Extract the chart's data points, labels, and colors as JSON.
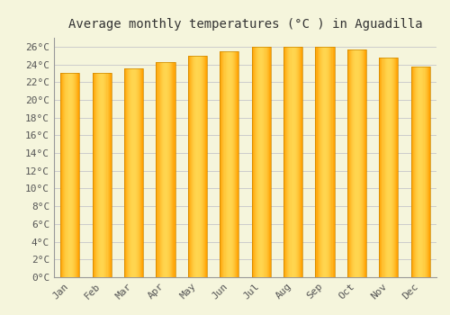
{
  "title": "Average monthly temperatures (°C ) in Aguadilla",
  "months": [
    "Jan",
    "Feb",
    "Mar",
    "Apr",
    "May",
    "Jun",
    "Jul",
    "Aug",
    "Sep",
    "Oct",
    "Nov",
    "Dec"
  ],
  "values": [
    23.0,
    23.0,
    23.5,
    24.3,
    25.0,
    25.5,
    26.0,
    26.0,
    26.0,
    25.7,
    24.8,
    23.8
  ],
  "bar_color_center": "#FFD54F",
  "bar_color_edge": "#FFA000",
  "background_color": "#F5F5DC",
  "grid_color": "#CCCCCC",
  "ylim": [
    0,
    27
  ],
  "ytick_step": 2,
  "title_fontsize": 10,
  "tick_fontsize": 8,
  "bar_width": 0.6
}
